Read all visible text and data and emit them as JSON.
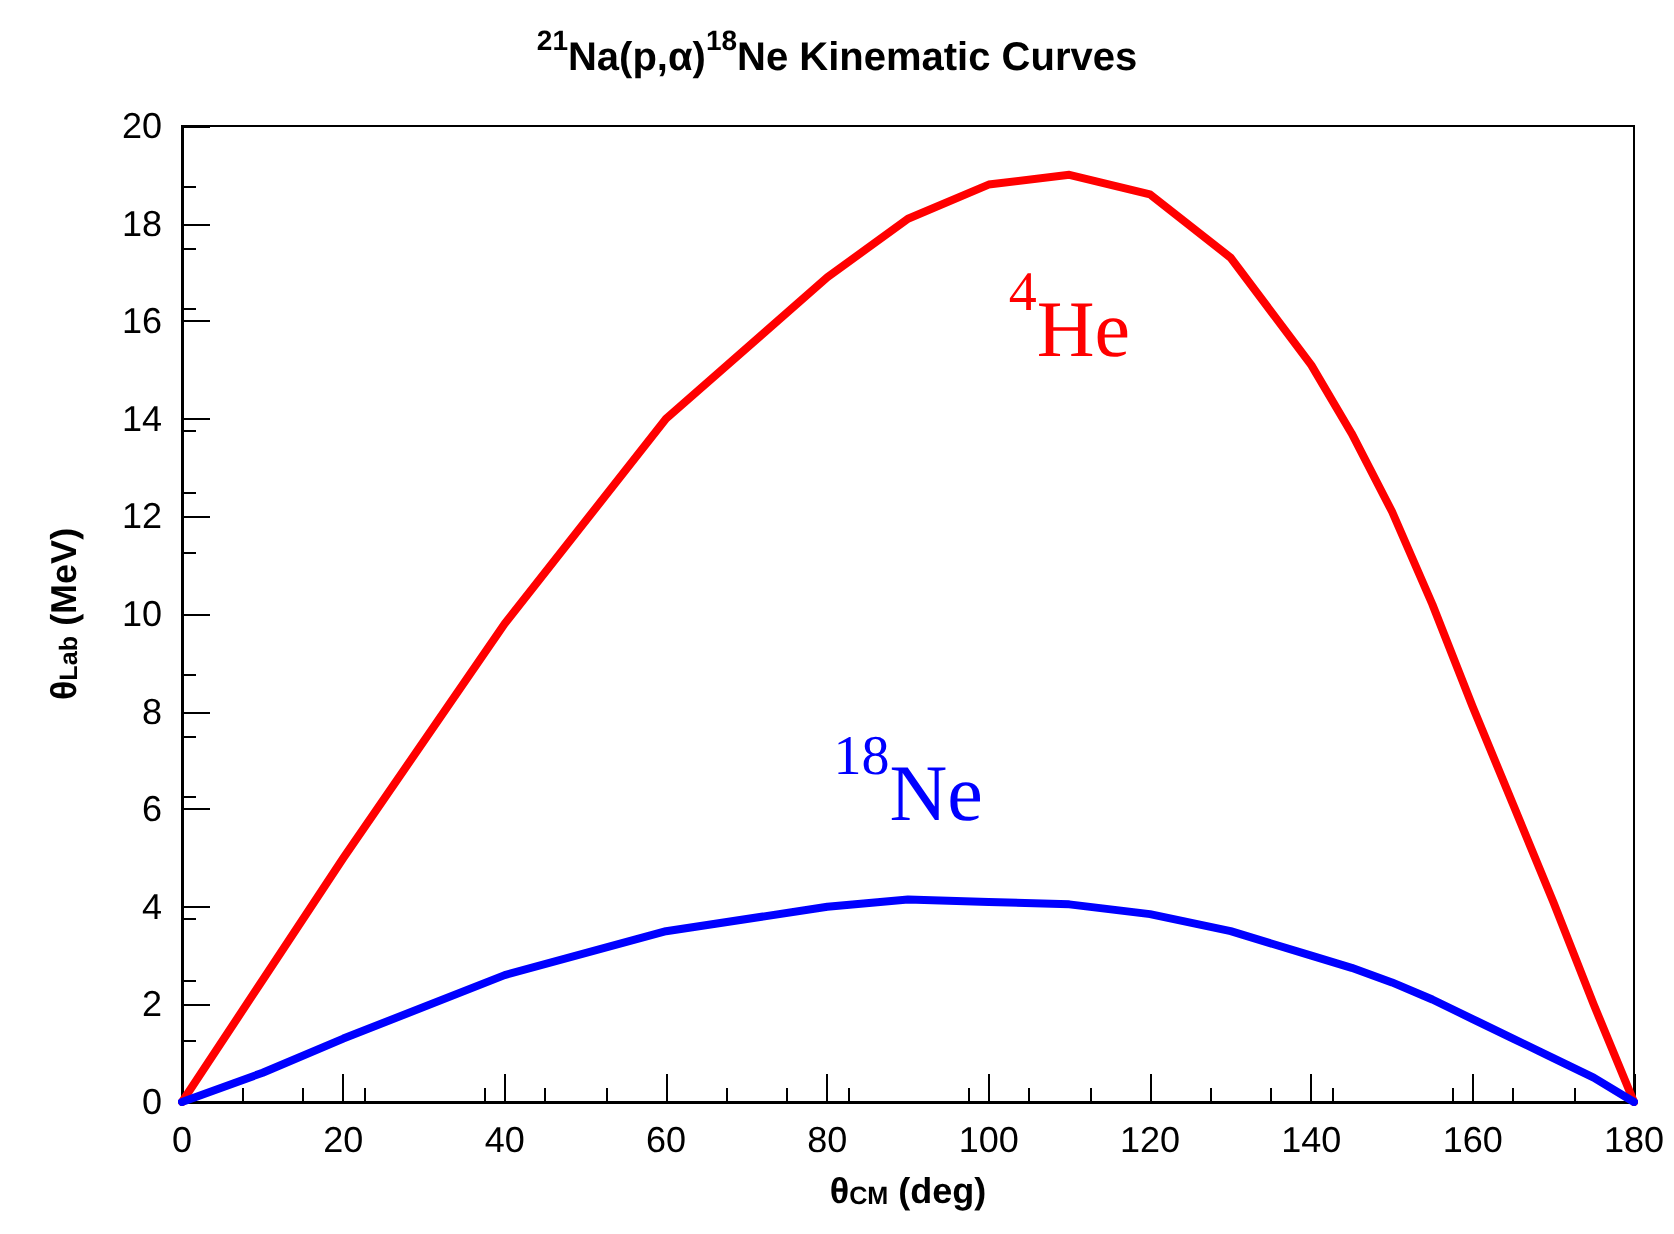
{
  "chart_data": {
    "type": "line",
    "title": "$^{21}$Na(p,α)$^{18}$Ne Kinematic Curves",
    "xlabel": "θ$_{CM}$ (deg)",
    "ylabel": "θ$_{Lab}$ (MeV)",
    "x": [
      0,
      10,
      20,
      40,
      60,
      80,
      90,
      100,
      110,
      120,
      130,
      140,
      145,
      150,
      155,
      160,
      165,
      170,
      175,
      180
    ],
    "series": [
      {
        "name": "$^{4}$He",
        "color": "#ff0000",
        "values": [
          0,
          2.5,
          5.0,
          9.8,
          14.0,
          16.9,
          18.1,
          18.8,
          19.0,
          18.6,
          17.3,
          15.1,
          13.7,
          12.1,
          10.2,
          8.1,
          6.1,
          4.1,
          2.0,
          0
        ]
      },
      {
        "name": "$^{18}$Ne",
        "color": "#0000ff",
        "values": [
          0,
          0.6,
          1.3,
          2.6,
          3.5,
          4.0,
          4.15,
          4.1,
          4.05,
          3.85,
          3.5,
          3.0,
          2.75,
          2.45,
          2.1,
          1.7,
          1.3,
          0.9,
          0.5,
          0
        ]
      }
    ],
    "xlim": [
      0,
      180
    ],
    "xticks": [
      0,
      20,
      40,
      60,
      80,
      100,
      120,
      140,
      160,
      180
    ],
    "ylim": [
      0,
      20
    ],
    "yticks": [
      0,
      2,
      4,
      6,
      8,
      10,
      12,
      14,
      16,
      18,
      20
    ],
    "grid": false,
    "legend": false,
    "marker": "none",
    "line_style": "solid"
  }
}
